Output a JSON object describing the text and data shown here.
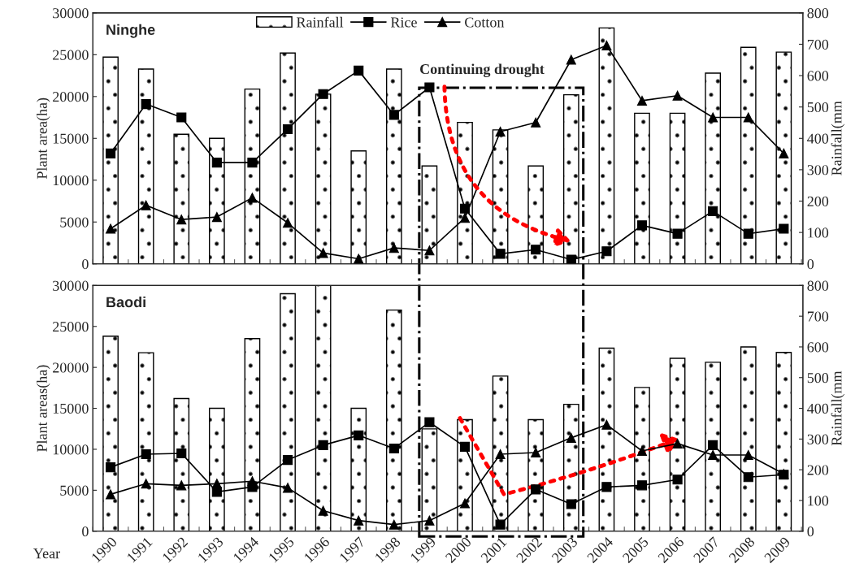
{
  "chart_data": [
    {
      "type": "bar",
      "title": "Ninghe",
      "ylabel": "Plant area(ha)",
      "y2label": "Rainfall(mm",
      "categories": [
        "1990",
        "1991",
        "1992",
        "1993",
        "1994",
        "1995",
        "1996",
        "1997",
        "1998",
        "1999",
        "2000",
        "2001",
        "2002",
        "2003",
        "2004",
        "2005",
        "2006",
        "2007",
        "2008",
        "2009"
      ],
      "series": [
        {
          "name": "Rainfall",
          "axis": "y2",
          "color": "#000000",
          "values": [
            659,
            621,
            413,
            400,
            557,
            672,
            541,
            360,
            621,
            312,
            451,
            427,
            312,
            539,
            752,
            480,
            480,
            608,
            690,
            675
          ]
        },
        {
          "name": "Rice",
          "type": "line",
          "marker": "square",
          "color": "#000000",
          "values": [
            13200,
            19100,
            17500,
            12100,
            12100,
            16100,
            20300,
            23100,
            17800,
            21100,
            6600,
            1200,
            1700,
            500,
            1500,
            4600,
            3600,
            6300,
            3600,
            4200
          ]
        },
        {
          "name": "Cotton",
          "type": "line",
          "marker": "triangle",
          "color": "#000000",
          "values": [
            4200,
            7000,
            5300,
            5600,
            7900,
            4900,
            1300,
            600,
            1900,
            1600,
            5500,
            15800,
            16900,
            24400,
            26100,
            19500,
            20100,
            17500,
            17500,
            13200
          ]
        }
      ],
      "ylim": [
        0,
        30000
      ],
      "yticks": [
        0,
        5000,
        10000,
        15000,
        20000,
        25000,
        30000
      ],
      "y2lim": [
        0,
        800
      ],
      "y2ticks": [
        0,
        100,
        200,
        300,
        400,
        500,
        600,
        700,
        800
      ],
      "annotations": [
        {
          "text": "Continuing drought",
          "x": "2003",
          "y": 2700
        }
      ],
      "legend": "top",
      "grid": false,
      "tick_labels": "y"
    },
    {
      "type": "bar",
      "title": "Baodi",
      "ylabel": "Plant areas(ha)",
      "y2label": "Rainfall(mm",
      "xlabel": "Year",
      "categories": [
        "1990",
        "1991",
        "1992",
        "1993",
        "1994",
        "1995",
        "1996",
        "1997",
        "1998",
        "1999",
        "2000",
        "2001",
        "2002",
        "2003",
        "2004",
        "2005",
        "2006",
        "2007",
        "2008",
        "2009"
      ],
      "series": [
        {
          "axis": "y2",
          "color": "#000000",
          "values": [
            635,
            581,
            432,
            400,
            627,
            773,
            800,
            400,
            720,
            333,
            363,
            505,
            363,
            413,
            596,
            468,
            563,
            550,
            600,
            582
          ]
        },
        {
          "type": "line",
          "marker": "square",
          "color": "#000000",
          "values": [
            7800,
            9400,
            9500,
            4800,
            5400,
            8700,
            10500,
            11700,
            10100,
            13300,
            10300,
            800,
            5100,
            3300,
            5400,
            5600,
            6300,
            10500,
            6600,
            6900
          ]
        },
        {
          "type": "line",
          "marker": "triangle",
          "color": "#000000",
          "values": [
            4500,
            5800,
            5600,
            5800,
            6100,
            5300,
            2500,
            1300,
            800,
            1300,
            3400,
            9400,
            9600,
            11400,
            13000,
            9800,
            10700,
            9300,
            9300,
            7000
          ]
        }
      ],
      "ylim": [
        0,
        30000
      ],
      "yticks": [
        0,
        5000,
        10000,
        15000,
        20000,
        25000,
        30000
      ],
      "y2lim": [
        0,
        800
      ],
      "y2ticks": [
        0,
        100,
        200,
        300,
        400,
        500,
        600,
        700,
        800
      ],
      "legend": false,
      "grid": false
    }
  ]
}
